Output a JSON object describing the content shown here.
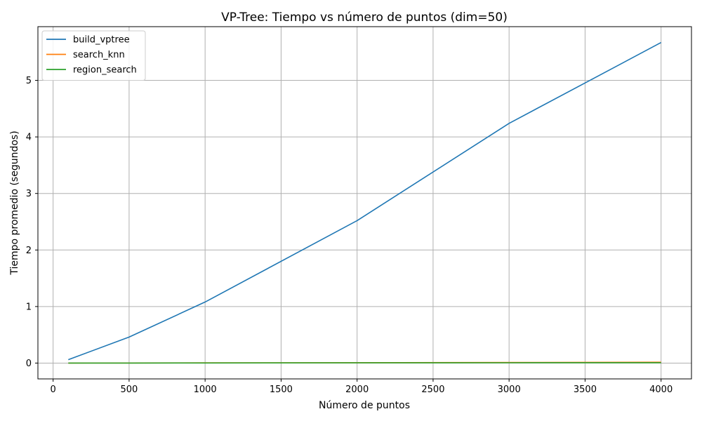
{
  "chart_data": {
    "type": "line",
    "title": "VP-Tree: Tiempo vs número de puntos (dim=50)",
    "xlabel": "Número de puntos",
    "ylabel": "Tiempo promedio (segundos)",
    "xlim": [
      -100,
      4200
    ],
    "ylim": [
      -0.28,
      5.95
    ],
    "xticks": [
      0,
      500,
      1000,
      1500,
      2000,
      2500,
      3000,
      3500,
      4000
    ],
    "yticks": [
      0,
      1,
      2,
      3,
      4,
      5
    ],
    "grid": true,
    "legend_position": "top-left",
    "x": [
      100,
      500,
      1000,
      2000,
      3000,
      4000
    ],
    "series": [
      {
        "name": "build_vptree",
        "color": "#1f77b4",
        "values": [
          0.06,
          0.46,
          1.08,
          2.52,
          4.24,
          5.67
        ]
      },
      {
        "name": "search_knn",
        "color": "#ff7f0e",
        "values": [
          0.0,
          0.002,
          0.004,
          0.007,
          0.01,
          0.015
        ]
      },
      {
        "name": "region_search",
        "color": "#2ca02c",
        "values": [
          0.0,
          0.001,
          0.002,
          0.004,
          0.005,
          0.007
        ]
      }
    ]
  }
}
